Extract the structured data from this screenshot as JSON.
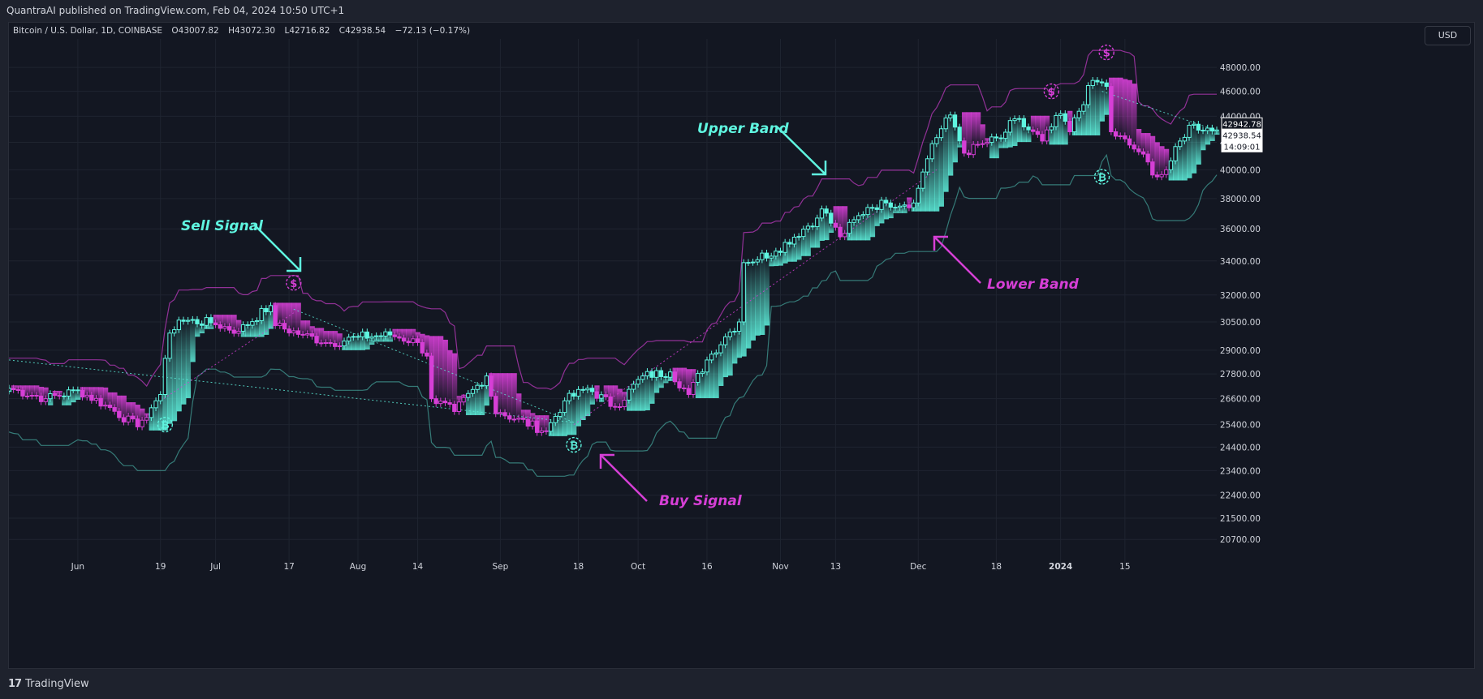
{
  "header": {
    "published_text": "QuantraAI published on TradingView.com, Feb 04, 2024 10:50 UTC+1",
    "symbol_label": "Bitcoin / U.S. Dollar, 1D, COINBASE",
    "ohlc": {
      "o_label": "O",
      "o": "43007.82",
      "h_label": "H",
      "h": "43072.30",
      "l_label": "L",
      "l": "42716.82",
      "c_label": "C",
      "c": "42938.54",
      "change": "−72.13 (−0.17%)"
    }
  },
  "currency_button": "USD",
  "footer": {
    "brand": "TradingView",
    "logo_glyph": "17"
  },
  "colors": {
    "background": "#131722",
    "frame": "#1e222d",
    "teal": "#5ff5e0",
    "magenta": "#d63fd6",
    "grid": "#1f2430",
    "text": "#d1d4dc"
  },
  "chart_data": {
    "type": "candlestick",
    "symbol": "BTCUSD",
    "timeframe": "1D",
    "y_scale": "log",
    "ylim": [
      19800,
      50500
    ],
    "y_ticks": [
      "48000.00",
      "46000.00",
      "44000.00",
      "42000.00",
      "40000.00",
      "38000.00",
      "36000.00",
      "34000.00",
      "32000.00",
      "30500.00",
      "29000.00",
      "27800.00",
      "26600.00",
      "25400.00",
      "24400.00",
      "23400.00",
      "22400.00",
      "21500.00",
      "20700.00"
    ],
    "x_ticks": [
      {
        "label": "Jun",
        "date": "2023-06-01",
        "bold": false
      },
      {
        "label": "19",
        "date": "2023-06-19",
        "bold": false
      },
      {
        "label": "Jul",
        "date": "2023-07-01",
        "bold": false
      },
      {
        "label": "17",
        "date": "2023-07-17",
        "bold": false
      },
      {
        "label": "Aug",
        "date": "2023-08-01",
        "bold": false
      },
      {
        "label": "14",
        "date": "2023-08-14",
        "bold": false
      },
      {
        "label": "Sep",
        "date": "2023-09-01",
        "bold": false
      },
      {
        "label": "18",
        "date": "2023-09-18",
        "bold": false
      },
      {
        "label": "Oct",
        "date": "2023-10-01",
        "bold": false
      },
      {
        "label": "16",
        "date": "2023-10-16",
        "bold": false
      },
      {
        "label": "Nov",
        "date": "2023-11-01",
        "bold": false
      },
      {
        "label": "13",
        "date": "2023-11-13",
        "bold": false
      },
      {
        "label": "Dec",
        "date": "2023-12-01",
        "bold": false
      },
      {
        "label": "18",
        "date": "2023-12-18",
        "bold": false
      },
      {
        "label": "2024",
        "date": "2024-01-01",
        "bold": true
      },
      {
        "label": "15",
        "date": "2024-01-15",
        "bold": false
      }
    ],
    "x_start": "2023-05-17",
    "x_end": "2024-02-04",
    "anchors": [
      [
        "2023-05-17",
        27100
      ],
      [
        "2023-05-25",
        26600
      ],
      [
        "2023-06-01",
        27000
      ],
      [
        "2023-06-07",
        26300
      ],
      [
        "2023-06-14",
        25300
      ],
      [
        "2023-06-15",
        25600
      ],
      [
        "2023-06-18",
        26500
      ],
      [
        "2023-06-19",
        26800
      ],
      [
        "2023-06-21",
        29900
      ],
      [
        "2023-06-23",
        30600
      ],
      [
        "2023-06-30",
        30450
      ],
      [
        "2023-07-06",
        30000
      ],
      [
        "2023-07-13",
        31400
      ],
      [
        "2023-07-14",
        30300
      ],
      [
        "2023-07-20",
        29800
      ],
      [
        "2023-07-26",
        29350
      ],
      [
        "2023-08-01",
        29700
      ],
      [
        "2023-08-08",
        29800
      ],
      [
        "2023-08-14",
        29400
      ],
      [
        "2023-08-16",
        28700
      ],
      [
        "2023-08-17",
        26600
      ],
      [
        "2023-08-22",
        26000
      ],
      [
        "2023-08-29",
        27700
      ],
      [
        "2023-08-31",
        25900
      ],
      [
        "2023-09-01",
        25950
      ],
      [
        "2023-09-11",
        25100
      ],
      [
        "2023-09-15",
        26500
      ],
      [
        "2023-09-20",
        27100
      ],
      [
        "2023-09-26",
        26200
      ],
      [
        "2023-10-02",
        27700
      ],
      [
        "2023-10-08",
        27900
      ],
      [
        "2023-10-12",
        26800
      ],
      [
        "2023-10-16",
        28500
      ],
      [
        "2023-10-20",
        29700
      ],
      [
        "2023-10-23",
        30500
      ],
      [
        "2023-10-24",
        33900
      ],
      [
        "2023-10-31",
        34600
      ],
      [
        "2023-11-09",
        36700
      ],
      [
        "2023-11-10",
        37300
      ],
      [
        "2023-11-14",
        35500
      ],
      [
        "2023-11-20",
        37400
      ],
      [
        "2023-11-24",
        37700
      ],
      [
        "2023-11-30",
        37700
      ],
      [
        "2023-12-01",
        38700
      ],
      [
        "2023-12-04",
        41900
      ],
      [
        "2023-12-08",
        44100
      ],
      [
        "2023-12-11",
        41200
      ],
      [
        "2023-12-15",
        41900
      ],
      [
        "2023-12-19",
        42300
      ],
      [
        "2023-12-22",
        43800
      ],
      [
        "2023-12-28",
        42100
      ],
      [
        "2024-01-01",
        44200
      ],
      [
        "2024-01-03",
        42800
      ],
      [
        "2024-01-08",
        46900
      ],
      [
        "2024-01-11",
        46400
      ],
      [
        "2024-01-12",
        42800
      ],
      [
        "2024-01-18",
        41300
      ],
      [
        "2024-01-22",
        39500
      ],
      [
        "2024-01-24",
        40000
      ],
      [
        "2024-01-29",
        43300
      ],
      [
        "2024-02-04",
        42938
      ]
    ],
    "upper_band_offset_pct": 5.5,
    "lower_band_offset_pct": -7.5,
    "trend_lines": [
      {
        "name": "descending trend",
        "color": "teal",
        "from": [
          "2023-05-17",
          28500
        ],
        "to": [
          "2023-09-17",
          25500
        ]
      },
      {
        "name": "descending trend",
        "color": "teal",
        "from": [
          "2023-07-18",
          31200
        ],
        "to": [
          "2023-09-17",
          25500
        ]
      },
      {
        "name": "ascending trend",
        "color": "magenta",
        "from": [
          "2023-06-19",
          26500
        ],
        "to": [
          "2023-07-18",
          31000
        ]
      },
      {
        "name": "ascending trend",
        "color": "magenta",
        "from": [
          "2023-09-17",
          25400
        ],
        "to": [
          "2023-12-05",
          40000
        ]
      },
      {
        "name": "descending trend",
        "color": "teal",
        "from": [
          "2024-01-10",
          46000
        ],
        "to": [
          "2024-02-04",
          42900
        ]
      }
    ],
    "signals": [
      {
        "type": "B",
        "date": "2023-06-20",
        "price": 25400
      },
      {
        "type": "S",
        "date": "2023-07-18",
        "price": 32700
      },
      {
        "type": "B",
        "date": "2023-09-17",
        "price": 24500
      },
      {
        "type": "S",
        "date": "2023-12-30",
        "price": 46000
      },
      {
        "type": "B",
        "date": "2024-01-10",
        "price": 39500
      },
      {
        "type": "S",
        "date": "2024-01-11",
        "price": 49300
      }
    ],
    "annotations": [
      {
        "text": "Sell Signal",
        "color": "teal"
      },
      {
        "text": "Upper Band",
        "color": "teal"
      },
      {
        "text": "Lower Band",
        "color": "magenta"
      },
      {
        "text": "Buy Signal",
        "color": "magenta"
      }
    ],
    "price_labels": [
      {
        "value": "42942.78",
        "style": "outline"
      },
      {
        "value": "42938.54",
        "style": "filled"
      },
      {
        "value": "14:09:01",
        "style": "filled"
      }
    ],
    "signal_glyphs": {
      "B": "₿",
      "S": "$"
    }
  }
}
